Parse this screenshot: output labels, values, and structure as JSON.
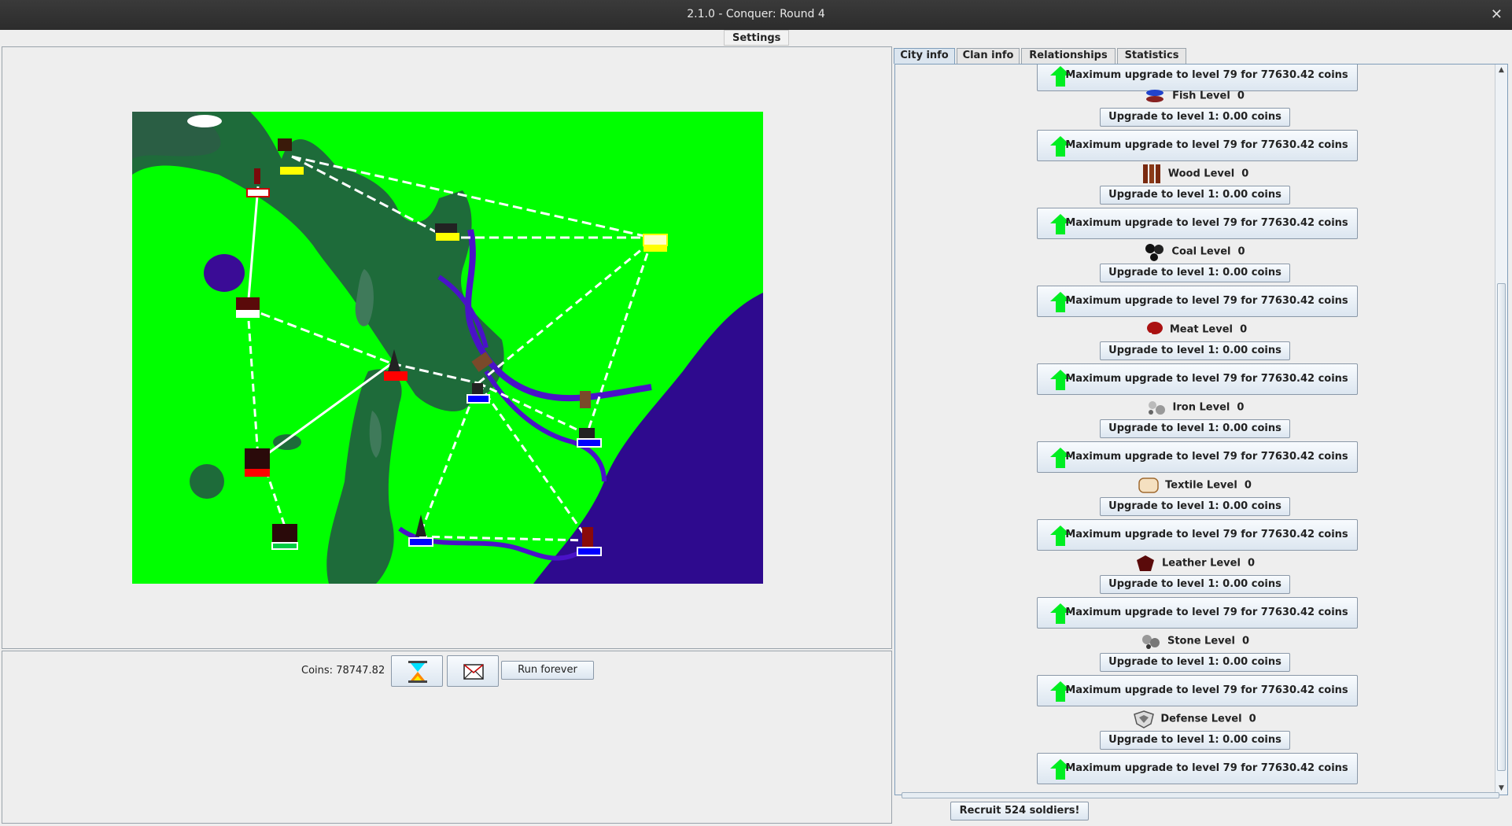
{
  "window": {
    "title": "2.1.0 - Conquer: Round 4"
  },
  "menu": {
    "settings": "Settings"
  },
  "controls": {
    "coins_label": "Coins:",
    "coins_value": "78747.82",
    "run_forever": "Run forever",
    "hourglass_icon": "hourglass-icon",
    "message_icon": "envelope-icon"
  },
  "tabs": [
    {
      "label": "City info",
      "active": true
    },
    {
      "label": "Clan info",
      "active": false
    },
    {
      "label": "Relationships",
      "active": false
    },
    {
      "label": "Statistics",
      "active": false
    }
  ],
  "city_info": {
    "top_max_upgrade": "Maximum upgrade to level 79 for 77630.42 coins",
    "resources": [
      {
        "name": "Fish Level",
        "level": "0",
        "icon": "fish-icon",
        "upgrade": "Upgrade to level 1: 0.00 coins",
        "max": "Maximum upgrade to level 79 for 77630.42 coins"
      },
      {
        "name": "Wood Level",
        "level": "0",
        "icon": "wood-icon",
        "upgrade": "Upgrade to level 1: 0.00 coins",
        "max": "Maximum upgrade to level 79 for 77630.42 coins"
      },
      {
        "name": "Coal Level",
        "level": "0",
        "icon": "coal-icon",
        "upgrade": "Upgrade to level 1: 0.00 coins",
        "max": "Maximum upgrade to level 79 for 77630.42 coins"
      },
      {
        "name": "Meat Level",
        "level": "0",
        "icon": "meat-icon",
        "upgrade": "Upgrade to level 1: 0.00 coins",
        "max": "Maximum upgrade to level 79 for 77630.42 coins"
      },
      {
        "name": "Iron Level",
        "level": "0",
        "icon": "iron-icon",
        "upgrade": "Upgrade to level 1: 0.00 coins",
        "max": "Maximum upgrade to level 79 for 77630.42 coins"
      },
      {
        "name": "Textile Level",
        "level": "0",
        "icon": "textile-icon",
        "upgrade": "Upgrade to level 1: 0.00 coins",
        "max": "Maximum upgrade to level 79 for 77630.42 coins"
      },
      {
        "name": "Leather Level",
        "level": "0",
        "icon": "leather-icon",
        "upgrade": "Upgrade to level 1: 0.00 coins",
        "max": "Maximum upgrade to level 79 for 77630.42 coins"
      },
      {
        "name": "Stone Level",
        "level": "0",
        "icon": "stone-icon",
        "upgrade": "Upgrade to level 1: 0.00 coins",
        "max": "Maximum upgrade to level 79 for 77630.42 coins"
      },
      {
        "name": "Defense Level",
        "level": "0",
        "icon": "shield-icon",
        "upgrade": "Upgrade to level 1: 0.00 coins",
        "max": "Maximum upgrade to level 79 for 77630.42 coins"
      }
    ],
    "recruit": "Recruit 524 soldiers!"
  },
  "colors": {
    "grass": "#00ff00",
    "forest": "#1e6b3a",
    "water": "#2e0a8e",
    "river": "#4a12c8",
    "clan_red": "#ff0000",
    "clan_blue": "#0000ff",
    "clan_yellow": "#ffff00",
    "clan_white": "#ffffff",
    "clan_green": "#00cc44",
    "upgrade_arrow": "#00ee22"
  }
}
